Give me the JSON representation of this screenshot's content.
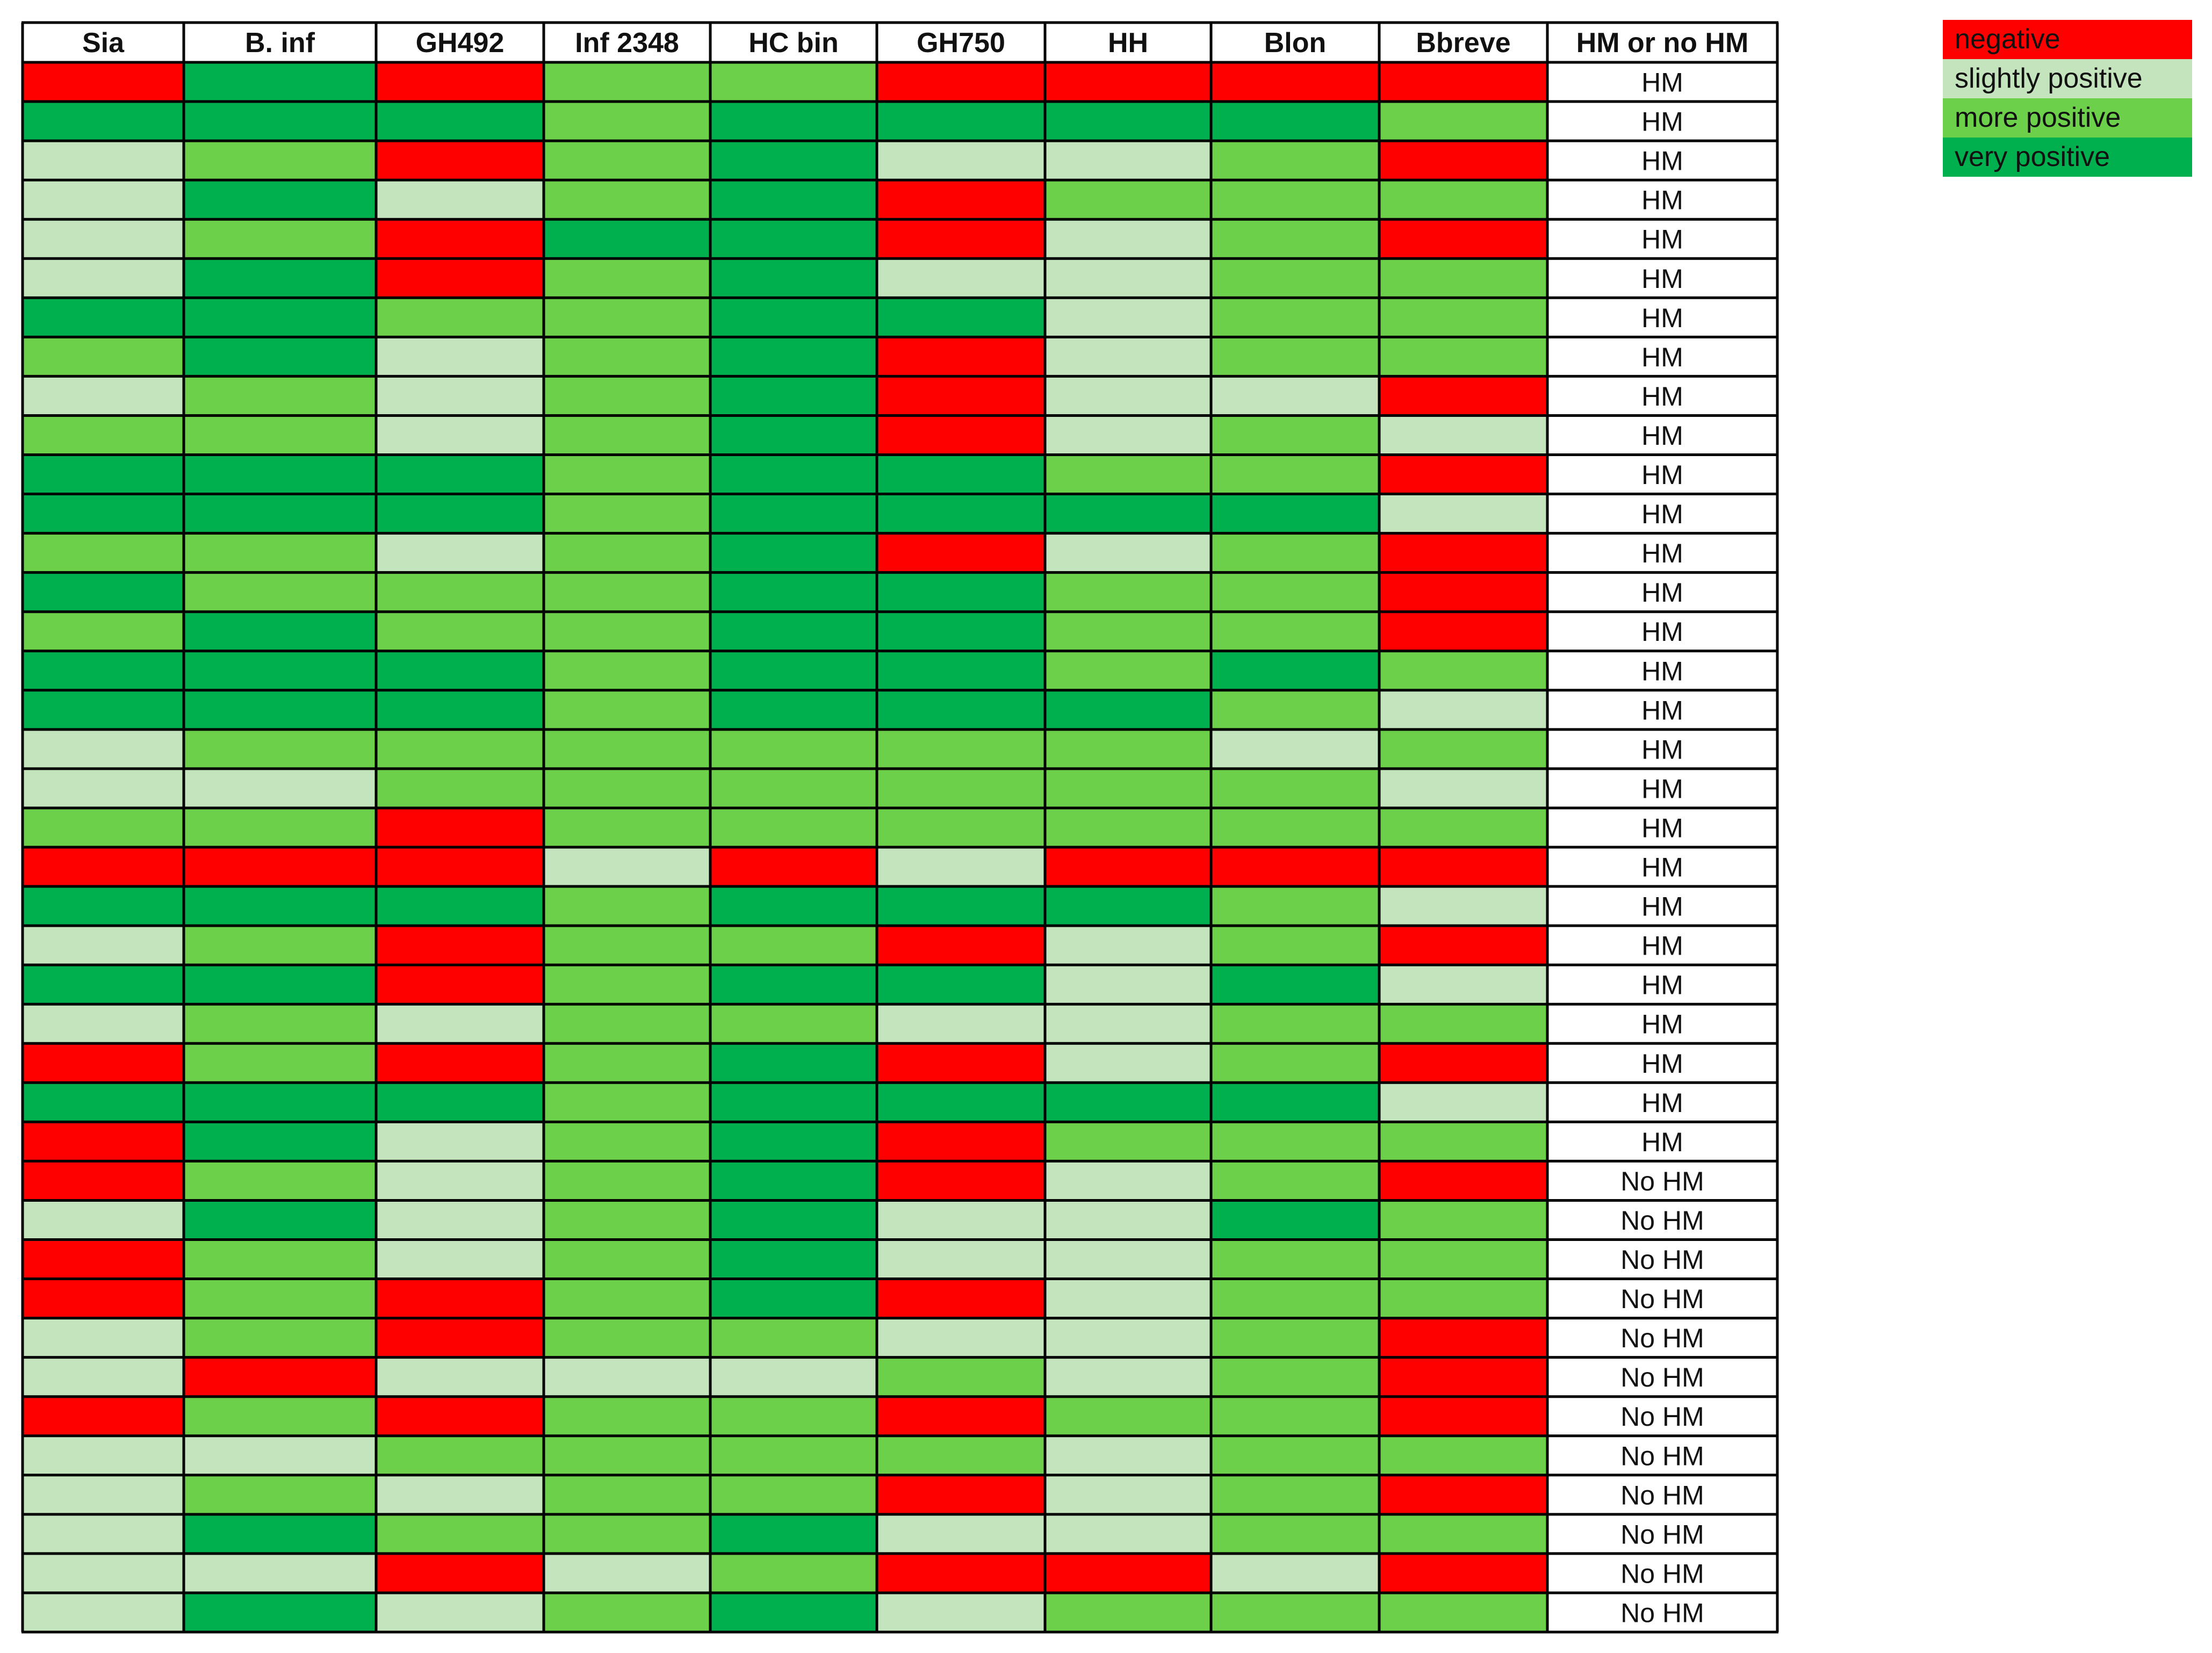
{
  "chart_data": {
    "type": "heatmap",
    "columns": [
      "Sia",
      "B. inf",
      "GH492",
      "Inf 2348",
      "HC bin",
      "GH750",
      "HH",
      "Blon",
      "Bbreve",
      "HM or no HM"
    ],
    "legend": [
      {
        "key": "N",
        "label": "negative",
        "color": "#ff0000"
      },
      {
        "key": "S",
        "label": "slightly positive",
        "color": "#c3e4bd"
      },
      {
        "key": "M",
        "label": "more positive",
        "color": "#6cd04a"
      },
      {
        "key": "V",
        "label": "very positive",
        "color": "#00b04f"
      }
    ],
    "rows": [
      {
        "cells": [
          "N",
          "V",
          "N",
          "M",
          "M",
          "N",
          "N",
          "N",
          "N"
        ],
        "label": "HM"
      },
      {
        "cells": [
          "V",
          "V",
          "V",
          "M",
          "V",
          "V",
          "V",
          "V",
          "M"
        ],
        "label": "HM"
      },
      {
        "cells": [
          "S",
          "M",
          "N",
          "M",
          "V",
          "S",
          "S",
          "M",
          "N"
        ],
        "label": "HM"
      },
      {
        "cells": [
          "S",
          "V",
          "S",
          "M",
          "V",
          "N",
          "M",
          "M",
          "M"
        ],
        "label": "HM"
      },
      {
        "cells": [
          "S",
          "M",
          "N",
          "V",
          "V",
          "N",
          "S",
          "M",
          "N"
        ],
        "label": "HM"
      },
      {
        "cells": [
          "S",
          "V",
          "N",
          "M",
          "V",
          "S",
          "S",
          "M",
          "M"
        ],
        "label": "HM"
      },
      {
        "cells": [
          "V",
          "V",
          "M",
          "M",
          "V",
          "V",
          "S",
          "M",
          "M"
        ],
        "label": "HM"
      },
      {
        "cells": [
          "M",
          "V",
          "S",
          "M",
          "V",
          "N",
          "S",
          "M",
          "M"
        ],
        "label": "HM"
      },
      {
        "cells": [
          "S",
          "M",
          "S",
          "M",
          "V",
          "N",
          "S",
          "S",
          "N"
        ],
        "label": "HM"
      },
      {
        "cells": [
          "M",
          "M",
          "S",
          "M",
          "V",
          "N",
          "S",
          "M",
          "S"
        ],
        "label": "HM"
      },
      {
        "cells": [
          "V",
          "V",
          "V",
          "M",
          "V",
          "V",
          "M",
          "M",
          "N"
        ],
        "label": "HM"
      },
      {
        "cells": [
          "V",
          "V",
          "V",
          "M",
          "V",
          "V",
          "V",
          "V",
          "S"
        ],
        "label": "HM"
      },
      {
        "cells": [
          "M",
          "M",
          "S",
          "M",
          "V",
          "N",
          "S",
          "M",
          "N"
        ],
        "label": "HM"
      },
      {
        "cells": [
          "V",
          "M",
          "M",
          "M",
          "V",
          "V",
          "M",
          "M",
          "N"
        ],
        "label": "HM"
      },
      {
        "cells": [
          "M",
          "V",
          "M",
          "M",
          "V",
          "V",
          "M",
          "M",
          "N"
        ],
        "label": "HM"
      },
      {
        "cells": [
          "V",
          "V",
          "V",
          "M",
          "V",
          "V",
          "M",
          "V",
          "M"
        ],
        "label": "HM"
      },
      {
        "cells": [
          "V",
          "V",
          "V",
          "M",
          "V",
          "V",
          "V",
          "M",
          "S"
        ],
        "label": "HM"
      },
      {
        "cells": [
          "S",
          "M",
          "M",
          "M",
          "M",
          "M",
          "M",
          "S",
          "M"
        ],
        "label": "HM"
      },
      {
        "cells": [
          "S",
          "S",
          "M",
          "M",
          "M",
          "M",
          "M",
          "M",
          "S"
        ],
        "label": "HM"
      },
      {
        "cells": [
          "M",
          "M",
          "N",
          "M",
          "M",
          "M",
          "M",
          "M",
          "M"
        ],
        "label": "HM"
      },
      {
        "cells": [
          "N",
          "N",
          "N",
          "S",
          "N",
          "S",
          "N",
          "N",
          "N"
        ],
        "label": "HM"
      },
      {
        "cells": [
          "V",
          "V",
          "V",
          "M",
          "V",
          "V",
          "V",
          "M",
          "S"
        ],
        "label": "HM"
      },
      {
        "cells": [
          "S",
          "M",
          "N",
          "M",
          "M",
          "N",
          "S",
          "M",
          "N"
        ],
        "label": "HM"
      },
      {
        "cells": [
          "V",
          "V",
          "N",
          "M",
          "V",
          "V",
          "S",
          "V",
          "S"
        ],
        "label": "HM"
      },
      {
        "cells": [
          "S",
          "M",
          "S",
          "M",
          "M",
          "S",
          "S",
          "M",
          "M"
        ],
        "label": "HM"
      },
      {
        "cells": [
          "N",
          "M",
          "N",
          "M",
          "V",
          "N",
          "S",
          "M",
          "N"
        ],
        "label": "HM"
      },
      {
        "cells": [
          "V",
          "V",
          "V",
          "M",
          "V",
          "V",
          "V",
          "V",
          "S"
        ],
        "label": "HM"
      },
      {
        "cells": [
          "N",
          "V",
          "S",
          "M",
          "V",
          "N",
          "M",
          "M",
          "M"
        ],
        "label": "HM"
      },
      {
        "cells": [
          "N",
          "M",
          "S",
          "M",
          "V",
          "N",
          "S",
          "M",
          "N"
        ],
        "label": "No HM"
      },
      {
        "cells": [
          "S",
          "V",
          "S",
          "M",
          "V",
          "S",
          "S",
          "V",
          "M"
        ],
        "label": "No HM"
      },
      {
        "cells": [
          "N",
          "M",
          "S",
          "M",
          "V",
          "S",
          "S",
          "M",
          "M"
        ],
        "label": "No HM"
      },
      {
        "cells": [
          "N",
          "M",
          "N",
          "M",
          "V",
          "N",
          "S",
          "M",
          "M"
        ],
        "label": "No HM"
      },
      {
        "cells": [
          "S",
          "M",
          "N",
          "M",
          "M",
          "S",
          "S",
          "M",
          "N"
        ],
        "label": "No HM"
      },
      {
        "cells": [
          "S",
          "N",
          "S",
          "S",
          "S",
          "M",
          "S",
          "M",
          "N"
        ],
        "label": "No HM"
      },
      {
        "cells": [
          "N",
          "M",
          "N",
          "M",
          "M",
          "N",
          "M",
          "M",
          "N"
        ],
        "label": "No HM"
      },
      {
        "cells": [
          "S",
          "S",
          "M",
          "M",
          "M",
          "M",
          "S",
          "M",
          "M"
        ],
        "label": "No HM"
      },
      {
        "cells": [
          "S",
          "M",
          "S",
          "M",
          "M",
          "N",
          "S",
          "M",
          "N"
        ],
        "label": "No HM"
      },
      {
        "cells": [
          "S",
          "V",
          "M",
          "M",
          "V",
          "S",
          "S",
          "M",
          "M"
        ],
        "label": "No HM"
      },
      {
        "cells": [
          "S",
          "S",
          "N",
          "S",
          "M",
          "N",
          "N",
          "S",
          "N"
        ],
        "label": "No HM"
      },
      {
        "cells": [
          "S",
          "V",
          "S",
          "M",
          "V",
          "S",
          "M",
          "M",
          "M"
        ],
        "label": "No HM"
      }
    ]
  }
}
